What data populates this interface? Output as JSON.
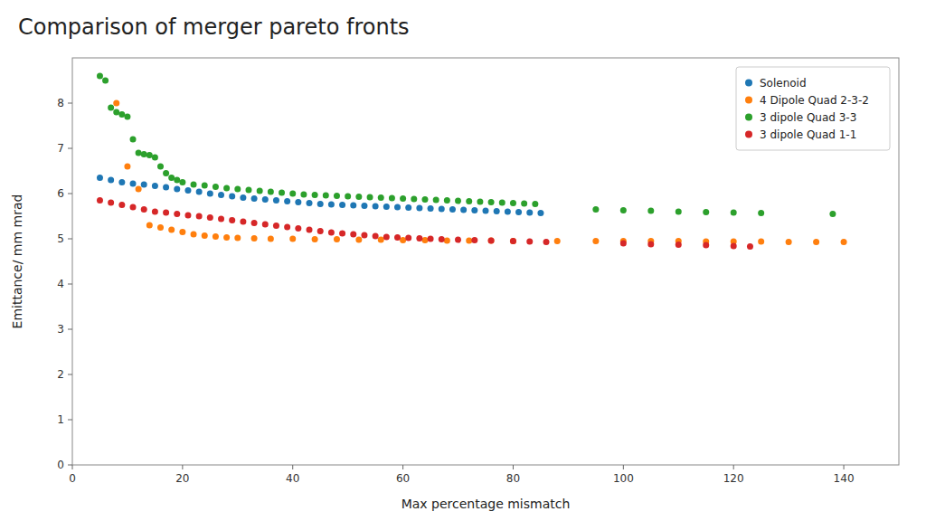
{
  "chart_data": {
    "type": "scatter",
    "title": "Comparison of merger pareto fronts",
    "xlabel": "Max percentage mismatch",
    "ylabel": "Emittance/ mm mrad",
    "xlim": [
      0,
      150
    ],
    "ylim": [
      0,
      9
    ],
    "xticks": [
      0,
      20,
      40,
      60,
      80,
      100,
      120,
      140
    ],
    "yticks": [
      0,
      1,
      2,
      3,
      4,
      5,
      6,
      7,
      8
    ],
    "grid": false,
    "legend": "upper right",
    "series": [
      {
        "name": "Solenoid",
        "color": "#1f77b4",
        "x": [
          5,
          7,
          9,
          11,
          13,
          15,
          17,
          19,
          21,
          23,
          25,
          27,
          29,
          31,
          33,
          35,
          37,
          39,
          41,
          43,
          45,
          47,
          49,
          51,
          53,
          55,
          57,
          59,
          61,
          63,
          65,
          67,
          69,
          71,
          73,
          75,
          77,
          79,
          81,
          83,
          85
        ],
        "values": [
          6.35,
          6.3,
          6.25,
          6.22,
          6.2,
          6.17,
          6.14,
          6.1,
          6.07,
          6.04,
          6.0,
          5.97,
          5.94,
          5.91,
          5.89,
          5.87,
          5.85,
          5.83,
          5.81,
          5.79,
          5.77,
          5.76,
          5.75,
          5.74,
          5.73,
          5.72,
          5.71,
          5.7,
          5.69,
          5.68,
          5.67,
          5.66,
          5.65,
          5.64,
          5.63,
          5.62,
          5.61,
          5.6,
          5.59,
          5.58,
          5.57
        ]
      },
      {
        "name": "4 Dipole Quad 2-3-2",
        "color": "#ff7f0e",
        "x": [
          8,
          10,
          12,
          14,
          16,
          18,
          20,
          22,
          24,
          26,
          28,
          30,
          33,
          36,
          40,
          44,
          48,
          52,
          56,
          60,
          64,
          68,
          72,
          76,
          80,
          88,
          95,
          100,
          105,
          110,
          115,
          120,
          125,
          130,
          135,
          140
        ],
        "values": [
          8.0,
          6.6,
          6.1,
          5.3,
          5.25,
          5.2,
          5.15,
          5.1,
          5.07,
          5.05,
          5.03,
          5.02,
          5.01,
          5.0,
          5.0,
          4.99,
          4.99,
          4.98,
          4.98,
          4.97,
          4.97,
          4.96,
          4.96,
          4.96,
          4.95,
          4.95,
          4.95,
          4.95,
          4.95,
          4.95,
          4.94,
          4.94,
          4.94,
          4.93,
          4.93,
          4.93
        ]
      },
      {
        "name": "3 dipole Quad 3-3",
        "color": "#2ca02c",
        "x": [
          5,
          6,
          7,
          8,
          9,
          10,
          11,
          12,
          13,
          14,
          15,
          16,
          17,
          18,
          19,
          20,
          22,
          24,
          26,
          28,
          30,
          32,
          34,
          36,
          38,
          40,
          42,
          44,
          46,
          48,
          50,
          52,
          54,
          56,
          58,
          60,
          62,
          64,
          66,
          68,
          70,
          72,
          74,
          76,
          78,
          80,
          82,
          84,
          95,
          100,
          105,
          110,
          115,
          120,
          125,
          138
        ],
        "values": [
          8.6,
          8.5,
          7.9,
          7.8,
          7.75,
          7.7,
          7.2,
          6.9,
          6.87,
          6.85,
          6.8,
          6.6,
          6.45,
          6.35,
          6.3,
          6.25,
          6.2,
          6.18,
          6.15,
          6.12,
          6.1,
          6.08,
          6.06,
          6.04,
          6.02,
          6.0,
          5.98,
          5.97,
          5.96,
          5.95,
          5.94,
          5.93,
          5.92,
          5.91,
          5.9,
          5.89,
          5.88,
          5.87,
          5.86,
          5.85,
          5.84,
          5.83,
          5.82,
          5.81,
          5.8,
          5.79,
          5.78,
          5.77,
          5.65,
          5.63,
          5.62,
          5.6,
          5.59,
          5.58,
          5.57,
          5.55
        ]
      },
      {
        "name": "3 dipole Quad 1-1",
        "color": "#d62728",
        "x": [
          5,
          7,
          9,
          11,
          13,
          15,
          17,
          19,
          21,
          23,
          25,
          27,
          29,
          31,
          33,
          35,
          37,
          39,
          41,
          43,
          45,
          47,
          49,
          51,
          53,
          55,
          57,
          59,
          61,
          63,
          65,
          67,
          70,
          73,
          76,
          80,
          83,
          86,
          100,
          105,
          110,
          115,
          120,
          123
        ],
        "values": [
          5.85,
          5.8,
          5.75,
          5.7,
          5.65,
          5.6,
          5.58,
          5.55,
          5.52,
          5.5,
          5.47,
          5.44,
          5.41,
          5.38,
          5.35,
          5.32,
          5.29,
          5.26,
          5.23,
          5.2,
          5.17,
          5.14,
          5.12,
          5.1,
          5.08,
          5.06,
          5.04,
          5.03,
          5.02,
          5.01,
          5.0,
          4.99,
          4.98,
          4.97,
          4.96,
          4.95,
          4.94,
          4.93,
          4.9,
          4.88,
          4.87,
          4.86,
          4.84,
          4.83
        ]
      }
    ]
  }
}
